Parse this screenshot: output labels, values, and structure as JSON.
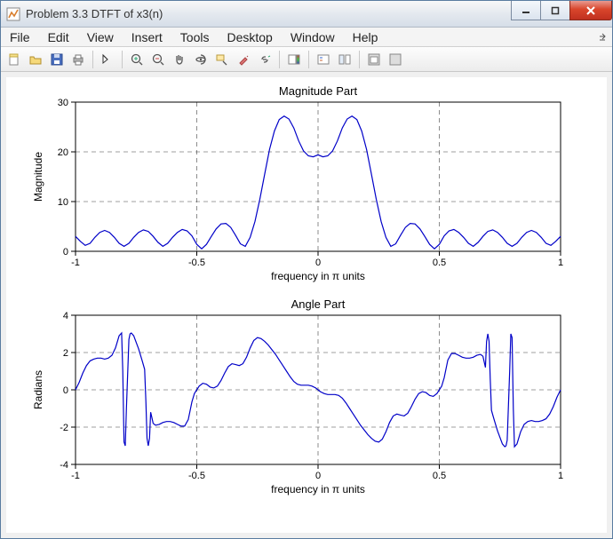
{
  "window": {
    "title": "Problem 3.3 DTFT of x3(n)",
    "icon": "matlab-figure-icon"
  },
  "window_controls": {
    "minimize": "minimize-button",
    "maximize": "maximize-button",
    "close": "close-button"
  },
  "menubar": {
    "items": [
      "File",
      "Edit",
      "View",
      "Insert",
      "Tools",
      "Desktop",
      "Window",
      "Help"
    ]
  },
  "toolbar": {
    "buttons": [
      {
        "name": "new-figure-icon"
      },
      {
        "name": "open-icon"
      },
      {
        "name": "save-icon"
      },
      {
        "name": "print-icon"
      },
      {
        "sep": true
      },
      {
        "name": "edit-plot-icon"
      },
      {
        "sep": true
      },
      {
        "name": "zoom-in-icon"
      },
      {
        "name": "zoom-out-icon"
      },
      {
        "name": "pan-icon"
      },
      {
        "name": "rotate-3d-icon"
      },
      {
        "name": "data-cursor-icon"
      },
      {
        "name": "brush-icon"
      },
      {
        "name": "link-icon"
      },
      {
        "sep": true
      },
      {
        "name": "colorbar-icon"
      },
      {
        "sep": true
      },
      {
        "name": "legend-icon"
      },
      {
        "name": "hide-tools-icon"
      },
      {
        "sep": true
      },
      {
        "name": "dock-icon"
      },
      {
        "name": "undock-icon"
      }
    ]
  },
  "figure": {
    "background_color": "#f0f0f0",
    "axes_background": "#ffffff",
    "grid_color": "#404040",
    "axis_border_color": "#000000",
    "line_color": "#0000c8",
    "line_width": 1.2,
    "tick_fontsize": 11,
    "label_fontsize": 12,
    "title_fontsize": 13,
    "subplots": [
      {
        "title": "Magnitude Part",
        "xlabel": "frequency in π units",
        "ylabel": "Magnitude",
        "xlim": [
          -1,
          1
        ],
        "ylim": [
          0,
          30
        ],
        "xticks": [
          -1,
          -0.5,
          0,
          0.5,
          1
        ],
        "yticks": [
          0,
          10,
          20,
          30
        ],
        "grid": true,
        "series": {
          "x": [
            -1.0,
            -0.98,
            -0.96,
            -0.94,
            -0.92,
            -0.9,
            -0.88,
            -0.86,
            -0.84,
            -0.82,
            -0.8,
            -0.78,
            -0.76,
            -0.74,
            -0.72,
            -0.7,
            -0.68,
            -0.66,
            -0.64,
            -0.62,
            -0.6,
            -0.58,
            -0.56,
            -0.54,
            -0.52,
            -0.5,
            -0.48,
            -0.46,
            -0.44,
            -0.42,
            -0.4,
            -0.38,
            -0.36,
            -0.34,
            -0.32,
            -0.3,
            -0.28,
            -0.26,
            -0.24,
            -0.22,
            -0.2,
            -0.18,
            -0.16,
            -0.14,
            -0.12,
            -0.1,
            -0.08,
            -0.06,
            -0.04,
            -0.02,
            0.0,
            0.02,
            0.04,
            0.06,
            0.08,
            0.1,
            0.12,
            0.14,
            0.16,
            0.18,
            0.2,
            0.22,
            0.24,
            0.26,
            0.28,
            0.3,
            0.32,
            0.34,
            0.36,
            0.38,
            0.4,
            0.42,
            0.44,
            0.46,
            0.48,
            0.5,
            0.52,
            0.54,
            0.56,
            0.58,
            0.6,
            0.62,
            0.64,
            0.66,
            0.68,
            0.7,
            0.72,
            0.74,
            0.76,
            0.78,
            0.8,
            0.82,
            0.84,
            0.86,
            0.88,
            0.9,
            0.92,
            0.94,
            0.96,
            0.98,
            1.0
          ],
          "y": [
            3.0,
            2.0,
            1.2,
            1.6,
            2.8,
            3.8,
            4.2,
            3.8,
            2.8,
            1.6,
            1.0,
            1.6,
            2.8,
            3.8,
            4.3,
            4.0,
            3.0,
            1.8,
            1.0,
            1.6,
            2.8,
            3.8,
            4.4,
            4.1,
            3.1,
            1.4,
            0.5,
            1.4,
            3.0,
            4.5,
            5.5,
            5.6,
            4.8,
            3.2,
            1.5,
            1.0,
            2.8,
            6.0,
            10.5,
            15.5,
            20.5,
            24.2,
            26.5,
            27.2,
            26.6,
            24.8,
            22.2,
            20.2,
            19.2,
            19.0,
            19.4,
            19.0,
            19.2,
            20.2,
            22.2,
            24.8,
            26.6,
            27.2,
            26.5,
            24.2,
            20.5,
            15.5,
            10.5,
            6.0,
            2.8,
            1.0,
            1.5,
            3.2,
            4.8,
            5.6,
            5.5,
            4.5,
            3.0,
            1.4,
            0.5,
            1.4,
            3.1,
            4.1,
            4.4,
            3.8,
            2.8,
            1.6,
            1.0,
            1.8,
            3.0,
            4.0,
            4.3,
            3.8,
            2.8,
            1.6,
            1.0,
            1.6,
            2.8,
            3.8,
            4.2,
            3.8,
            2.8,
            1.6,
            1.2,
            2.0,
            3.0
          ]
        }
      },
      {
        "title": "Angle Part",
        "xlabel": "frequency in π units",
        "ylabel": "Radians",
        "xlim": [
          -1,
          1
        ],
        "ylim": [
          -4,
          4
        ],
        "xticks": [
          -1,
          -0.5,
          0,
          0.5,
          1
        ],
        "yticks": [
          -4,
          -2,
          0,
          2,
          4
        ],
        "grid": true,
        "series": {
          "x": [
            -1.0,
            -0.985,
            -0.97,
            -0.955,
            -0.94,
            -0.925,
            -0.91,
            -0.895,
            -0.88,
            -0.865,
            -0.85,
            -0.835,
            -0.82,
            -0.81,
            -0.805,
            -0.8,
            -0.795,
            -0.79,
            -0.78,
            -0.775,
            -0.77,
            -0.76,
            -0.74,
            -0.725,
            -0.715,
            -0.71,
            -0.705,
            -0.7,
            -0.695,
            -0.69,
            -0.68,
            -0.67,
            -0.655,
            -0.64,
            -0.625,
            -0.61,
            -0.595,
            -0.58,
            -0.565,
            -0.55,
            -0.535,
            -0.52,
            -0.51,
            -0.5,
            -0.49,
            -0.475,
            -0.46,
            -0.445,
            -0.43,
            -0.415,
            -0.4,
            -0.385,
            -0.37,
            -0.355,
            -0.34,
            -0.325,
            -0.31,
            -0.295,
            -0.28,
            -0.265,
            -0.25,
            -0.235,
            -0.22,
            -0.205,
            -0.19,
            -0.175,
            -0.16,
            -0.145,
            -0.13,
            -0.115,
            -0.1,
            -0.085,
            -0.07,
            -0.055,
            -0.04,
            -0.025,
            -0.01,
            0.0,
            0.01,
            0.025,
            0.04,
            0.055,
            0.07,
            0.085,
            0.1,
            0.115,
            0.13,
            0.145,
            0.16,
            0.175,
            0.19,
            0.205,
            0.22,
            0.235,
            0.25,
            0.265,
            0.28,
            0.295,
            0.31,
            0.325,
            0.34,
            0.355,
            0.37,
            0.385,
            0.4,
            0.415,
            0.43,
            0.445,
            0.46,
            0.475,
            0.49,
            0.5,
            0.51,
            0.52,
            0.535,
            0.55,
            0.565,
            0.58,
            0.595,
            0.61,
            0.625,
            0.64,
            0.655,
            0.67,
            0.68,
            0.69,
            0.695,
            0.7,
            0.705,
            0.71,
            0.715,
            0.725,
            0.74,
            0.76,
            0.77,
            0.775,
            0.78,
            0.79,
            0.795,
            0.8,
            0.805,
            0.81,
            0.82,
            0.835,
            0.85,
            0.865,
            0.88,
            0.895,
            0.91,
            0.925,
            0.94,
            0.955,
            0.97,
            0.985,
            1.0
          ],
          "y": [
            0.0,
            0.4,
            0.9,
            1.3,
            1.55,
            1.65,
            1.7,
            1.7,
            1.65,
            1.7,
            1.85,
            2.25,
            2.9,
            3.05,
            1.0,
            -2.8,
            -3.0,
            -1.0,
            2.7,
            3.0,
            3.05,
            2.9,
            2.2,
            1.55,
            1.1,
            -0.6,
            -2.6,
            -3.0,
            -2.6,
            -1.2,
            -1.8,
            -1.9,
            -1.85,
            -1.75,
            -1.7,
            -1.7,
            -1.75,
            -1.85,
            -1.95,
            -1.95,
            -1.6,
            -0.65,
            -0.2,
            0.0,
            0.2,
            0.35,
            0.3,
            0.15,
            0.1,
            0.2,
            0.5,
            0.9,
            1.25,
            1.4,
            1.35,
            1.3,
            1.4,
            1.75,
            2.25,
            2.65,
            2.8,
            2.75,
            2.6,
            2.4,
            2.15,
            1.9,
            1.6,
            1.3,
            1.0,
            0.7,
            0.45,
            0.3,
            0.25,
            0.25,
            0.25,
            0.2,
            0.1,
            0.0,
            -0.1,
            -0.2,
            -0.25,
            -0.25,
            -0.25,
            -0.3,
            -0.45,
            -0.7,
            -1.0,
            -1.3,
            -1.6,
            -1.9,
            -2.15,
            -2.4,
            -2.6,
            -2.75,
            -2.8,
            -2.65,
            -2.25,
            -1.75,
            -1.4,
            -1.3,
            -1.35,
            -1.4,
            -1.25,
            -0.9,
            -0.5,
            -0.2,
            -0.1,
            -0.15,
            -0.3,
            -0.35,
            -0.2,
            0.0,
            0.2,
            0.65,
            1.6,
            1.95,
            1.95,
            1.85,
            1.75,
            1.7,
            1.7,
            1.75,
            1.85,
            1.9,
            1.8,
            1.2,
            2.6,
            3.0,
            2.6,
            0.6,
            -1.1,
            -1.55,
            -2.2,
            -2.9,
            -3.05,
            -3.0,
            -2.7,
            1.0,
            3.0,
            2.8,
            -1.0,
            -3.05,
            -2.9,
            -2.25,
            -1.85,
            -1.7,
            -1.65,
            -1.7,
            -1.7,
            -1.65,
            -1.55,
            -1.3,
            -0.9,
            -0.4,
            0.0
          ]
        }
      }
    ]
  }
}
